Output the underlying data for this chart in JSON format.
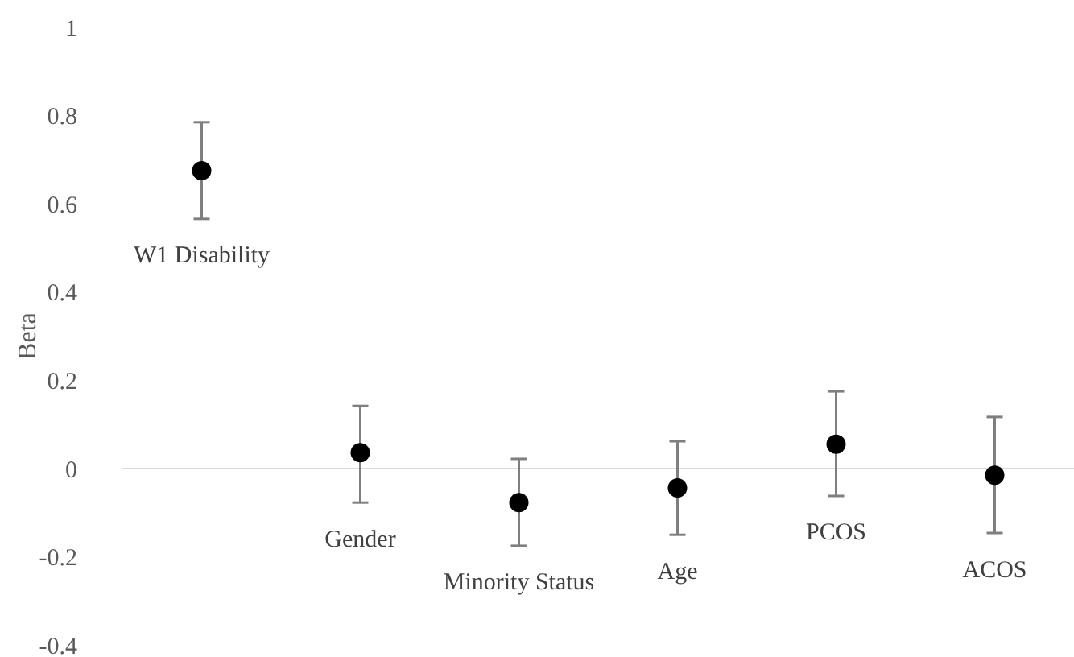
{
  "chart_data": {
    "type": "scatter",
    "ylabel": "Beta",
    "categories": [
      "W1 Disability",
      "Gender",
      "Minority Status",
      "Age",
      "PCOS",
      "ACOS"
    ],
    "values": [
      0.675,
      0.036,
      -0.077,
      -0.044,
      0.055,
      -0.015
    ],
    "errors": [
      [
        0.566,
        0.785
      ],
      [
        -0.077,
        0.142
      ],
      [
        -0.175,
        0.022
      ],
      [
        -0.15,
        0.062
      ],
      [
        -0.062,
        0.175
      ],
      [
        -0.146,
        0.117
      ]
    ],
    "color": "#000000",
    "marker": "circle",
    "ylim": [
      -0.4,
      1
    ],
    "yticks": [
      -0.4,
      -0.2,
      0,
      0.2,
      0.4,
      0.6,
      0.8,
      1
    ],
    "grid": false
  }
}
